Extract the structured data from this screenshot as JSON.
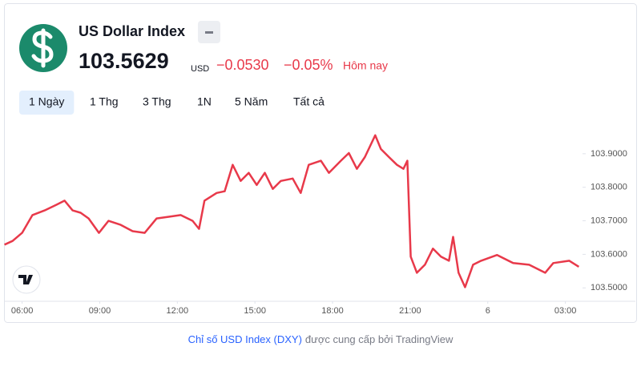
{
  "header": {
    "title": "US Dollar Index",
    "price": "103.5629",
    "currency": "USD",
    "change": "−0.0530",
    "change_percent": "−0.05%",
    "period": "Hôm nay"
  },
  "ranges": [
    "1 Ngày",
    "1 Thg",
    "3 Thg",
    "1N",
    "5 Năm",
    "Tất cả"
  ],
  "chart_data": {
    "type": "line",
    "x": [
      5.32,
      5.63,
      6.0,
      6.4,
      6.87,
      7.33,
      7.64,
      7.95,
      8.26,
      8.57,
      8.97,
      9.34,
      9.81,
      10.27,
      10.74,
      11.2,
      11.67,
      12.13,
      12.59,
      12.84,
      13.05,
      13.52,
      13.83,
      14.14,
      14.45,
      14.76,
      15.07,
      15.38,
      15.69,
      16.0,
      16.46,
      16.77,
      17.08,
      17.55,
      17.86,
      18.32,
      18.63,
      18.94,
      19.25,
      19.65,
      19.87,
      20.18,
      20.49,
      20.74,
      20.89,
      21.02,
      21.26,
      21.57,
      21.88,
      22.19,
      22.5,
      22.66,
      22.87,
      23.12,
      23.43,
      23.74,
      24.36,
      24.98,
      25.6,
      26.22,
      26.53,
      27.15,
      27.52
    ],
    "series": [
      {
        "name": "US Dollar Index",
        "color": "#e8394a",
        "values": [
          103.629,
          103.64,
          103.664,
          103.717,
          103.731,
          103.748,
          103.76,
          103.731,
          103.724,
          103.707,
          103.664,
          103.7,
          103.688,
          103.669,
          103.664,
          103.707,
          103.712,
          103.717,
          103.7,
          103.676,
          103.76,
          103.783,
          103.788,
          103.867,
          103.819,
          103.843,
          103.807,
          103.843,
          103.795,
          103.819,
          103.826,
          103.783,
          103.867,
          103.879,
          103.843,
          103.879,
          103.902,
          103.855,
          103.89,
          103.955,
          103.914,
          103.89,
          103.867,
          103.855,
          103.879,
          103.593,
          103.545,
          103.569,
          103.617,
          103.593,
          103.581,
          103.652,
          103.545,
          103.502,
          103.569,
          103.581,
          103.598,
          103.574,
          103.569,
          103.545,
          103.574,
          103.581,
          103.563
        ]
      }
    ],
    "xlim": [
      5.3,
      27.6
    ],
    "xticks": [
      {
        "value": 6,
        "label": "06:00"
      },
      {
        "value": 9,
        "label": "09:00"
      },
      {
        "value": 12,
        "label": "12:00"
      },
      {
        "value": 15,
        "label": "15:00"
      },
      {
        "value": 18,
        "label": "18:00"
      },
      {
        "value": 21,
        "label": "21:00"
      },
      {
        "value": 24,
        "label": "6"
      },
      {
        "value": 27,
        "label": "03:00"
      }
    ],
    "ylim": [
      103.46,
      104.0
    ],
    "yticks": [
      {
        "value": 103.5,
        "label": "103.5000"
      },
      {
        "value": 103.6,
        "label": "103.6000"
      },
      {
        "value": 103.7,
        "label": "103.7000"
      },
      {
        "value": 103.8,
        "label": "103.8000"
      },
      {
        "value": 103.9,
        "label": "103.9000"
      }
    ]
  },
  "footer": {
    "link": "Chỉ số USD Index (DXY)",
    "text": "được cung cấp bởi TradingView"
  }
}
